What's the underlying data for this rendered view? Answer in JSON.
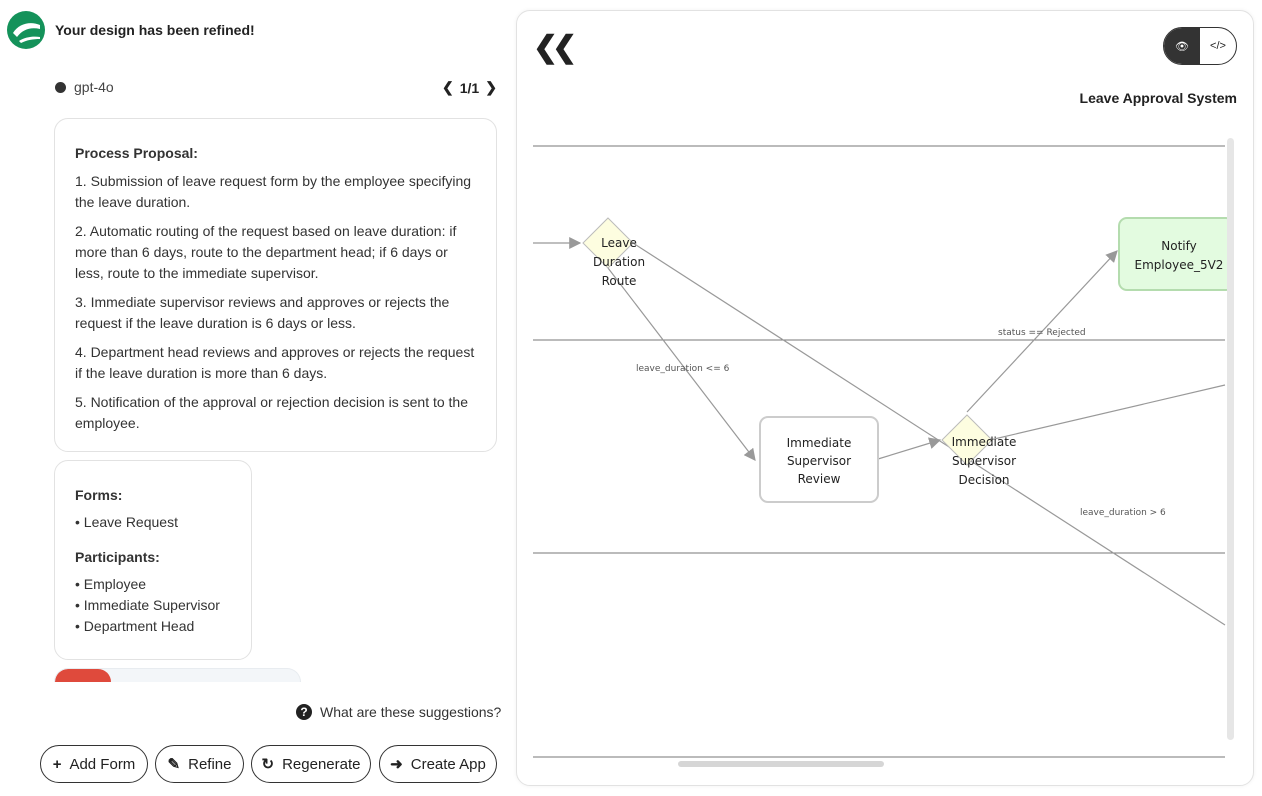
{
  "header": {
    "title": "Your design has been refined!",
    "model": "gpt-4o",
    "pager": "1/1"
  },
  "proposal": {
    "heading": "Process Proposal:",
    "steps": [
      "1. Submission of leave request form by the employee specifying the leave duration.",
      "2. Automatic routing of the request based on leave duration: if more than 6 days, route to the department head; if 6 days or less, route to the immediate supervisor.",
      "3. Immediate supervisor reviews and approves or rejects the request if the leave duration is 6 days or less.",
      "4. Department head reviews and approves or rejects the request if the leave duration is more than 6 days.",
      "5. Notification of the approval or rejection decision is sent to the employee."
    ]
  },
  "forms": {
    "heading": "Forms:",
    "items": [
      "• Leave Request"
    ]
  },
  "participants": {
    "heading": "Participants:",
    "items": [
      "• Employee",
      "• Immediate Supervisor",
      "• Department Head"
    ]
  },
  "help_link": "What are these suggestions?",
  "buttons": {
    "add_form": "Add Form",
    "refine": "Refine",
    "regenerate": "Regenerate",
    "create_app": "Create App"
  },
  "diagram": {
    "title": "Leave Approval System",
    "nodes": {
      "route": [
        "Leave",
        "Duration",
        "Route"
      ],
      "review": [
        "Immediate",
        "Supervisor",
        "Review"
      ],
      "decision": [
        "Immediate",
        "Supervisor",
        "Decision"
      ],
      "notify": [
        "Notify",
        "Employee_5V2"
      ]
    },
    "edges": {
      "le6": "leave_duration <= 6",
      "gt6": "leave_duration > 6",
      "rejected": "status == Rejected"
    }
  },
  "colors": {
    "brand": "#14925a",
    "gateway": "#fdfde0",
    "notify": "#e3fbe0",
    "danger": "#df4a3c"
  }
}
